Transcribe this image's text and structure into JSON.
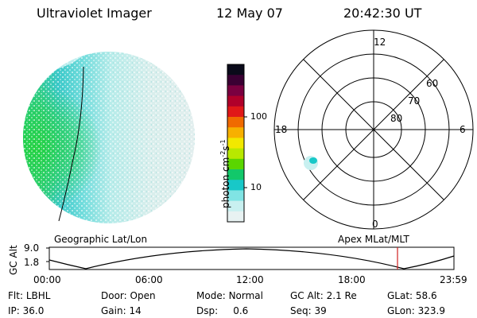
{
  "header": {
    "title": "Ultraviolet Imager",
    "date": "12 May 07",
    "time": "20:42:30 UT"
  },
  "colorbar": {
    "unit_label": "photon cm",
    "unit_exp1": "-2",
    "unit_mid": "s",
    "unit_exp2": "-1",
    "ticks": [
      "100",
      "10"
    ],
    "colors": [
      "#0a0a1a",
      "#3a0033",
      "#7a0040",
      "#b0002a",
      "#e01818",
      "#f06a00",
      "#f7b000",
      "#f2e800",
      "#b8e800",
      "#5ad600",
      "#12c86a",
      "#18c8c8",
      "#80e4e4",
      "#c8f0f0",
      "#e8f2f2"
    ]
  },
  "polar_plot": {
    "mlt_labels": {
      "top": "12",
      "left": "18",
      "right": "6",
      "bottom": "0"
    },
    "lat_labels": [
      "60",
      "70",
      "80"
    ]
  },
  "projections": {
    "left": "Geographic Lat/Lon",
    "right": "Apex MLat/MLT"
  },
  "altitude_panel": {
    "axis_label": "GC Alt",
    "y_ticks": [
      "9.0",
      "1.8"
    ],
    "x_ticks": [
      "00:00",
      "06:00",
      "12:00",
      "18:00",
      "23:59"
    ],
    "marker_time": "20:42:30",
    "marker_color": "#d02020"
  },
  "info": {
    "row1": [
      {
        "label": "Flt:",
        "value": "LBHL"
      },
      {
        "label": "Door:",
        "value": "Open"
      },
      {
        "label": "Mode:",
        "value": "Normal"
      },
      {
        "label": "GC Alt:",
        "value": "2.1 Re"
      },
      {
        "label": "GLat:",
        "value": "58.6"
      }
    ],
    "row2": [
      {
        "label": "IP:",
        "value": "36.0"
      },
      {
        "label": "Gain:",
        "value": "14"
      },
      {
        "label": "Dsp:",
        "value": "0.6"
      },
      {
        "label": "Seq:",
        "value": "39"
      },
      {
        "label": "GLon:",
        "value": "323.9"
      }
    ]
  }
}
